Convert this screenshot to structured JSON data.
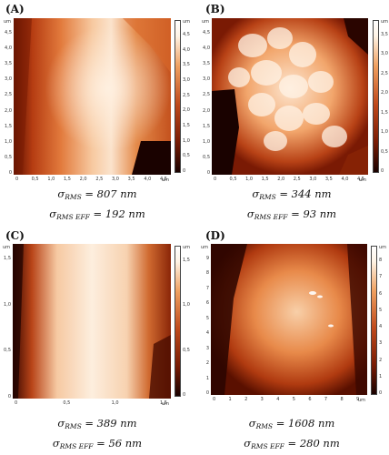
{
  "panels": [
    {
      "label": "(A)",
      "sigma_rms": "807 nm",
      "sigma_rms_eff": "192 nm",
      "x_ticks": [
        "0",
        "0,5",
        "1,0",
        "1,5",
        "2,0",
        "2,5",
        "3,0",
        "3,5",
        "4,0",
        "4,5"
      ],
      "x_unit": "um",
      "y_ticks": [
        "0",
        "0,5",
        "1,0",
        "1,5",
        "2,0",
        "2,5",
        "3,0",
        "3,5",
        "4,0",
        "4,5"
      ],
      "y_unit": "um",
      "cbar_ticks": [
        "0",
        "0,5",
        "1,0",
        "1,5",
        "2,0",
        "2,5",
        "3,0",
        "3,5",
        "4,0",
        "4,5"
      ],
      "cbar_unit": "um"
    },
    {
      "label": "(B)",
      "sigma_rms": "344 nm",
      "sigma_rms_eff": "93 nm",
      "x_ticks": [
        "0",
        "0,5",
        "1,0",
        "1,5",
        "2,0",
        "2,5",
        "3,0",
        "3,5",
        "4,0",
        "4,5"
      ],
      "x_unit": "um",
      "y_ticks": [
        "0",
        "0,5",
        "1,0",
        "1,5",
        "2,0",
        "2,5",
        "3,0",
        "3,5",
        "4,0",
        "4,5"
      ],
      "y_unit": "um",
      "cbar_ticks": [
        "0",
        "0,5",
        "1,0",
        "1,5",
        "2,0",
        "2,5",
        "3,0",
        "3,5"
      ],
      "cbar_unit": "um"
    },
    {
      "label": "(C)",
      "sigma_rms": "389 nm",
      "sigma_rms_eff": "56 nm",
      "x_ticks": [
        "0",
        "0,5",
        "1,0",
        "1,5"
      ],
      "x_unit": "um",
      "y_ticks": [
        "0",
        "0,5",
        "1,0",
        "1,5"
      ],
      "y_unit": "um",
      "cbar_ticks": [
        "0",
        "0,5",
        "1,0",
        "1,5"
      ],
      "cbar_unit": "um"
    },
    {
      "label": "(D)",
      "sigma_rms": "1608 nm",
      "sigma_rms_eff": "280 nm",
      "x_ticks": [
        "0",
        "1",
        "2",
        "3",
        "4",
        "5",
        "6",
        "7",
        "8",
        "9"
      ],
      "x_unit": "um",
      "y_ticks": [
        "0",
        "1",
        "2",
        "3",
        "4",
        "5",
        "6",
        "7",
        "8",
        "9"
      ],
      "y_unit": "um",
      "cbar_ticks": [
        "0",
        "1",
        "2",
        "3",
        "4",
        "5",
        "6",
        "7",
        "8"
      ],
      "cbar_unit": "um"
    }
  ],
  "caption_symbols": {
    "sigma": "σ",
    "rms": "RMS",
    "rms_eff": "RMS EFF",
    "equals": "="
  },
  "colors": {
    "dark": "#1a0200",
    "mid": "#c04a1c",
    "light": "#fff4e6",
    "bright": "#ffffff"
  }
}
